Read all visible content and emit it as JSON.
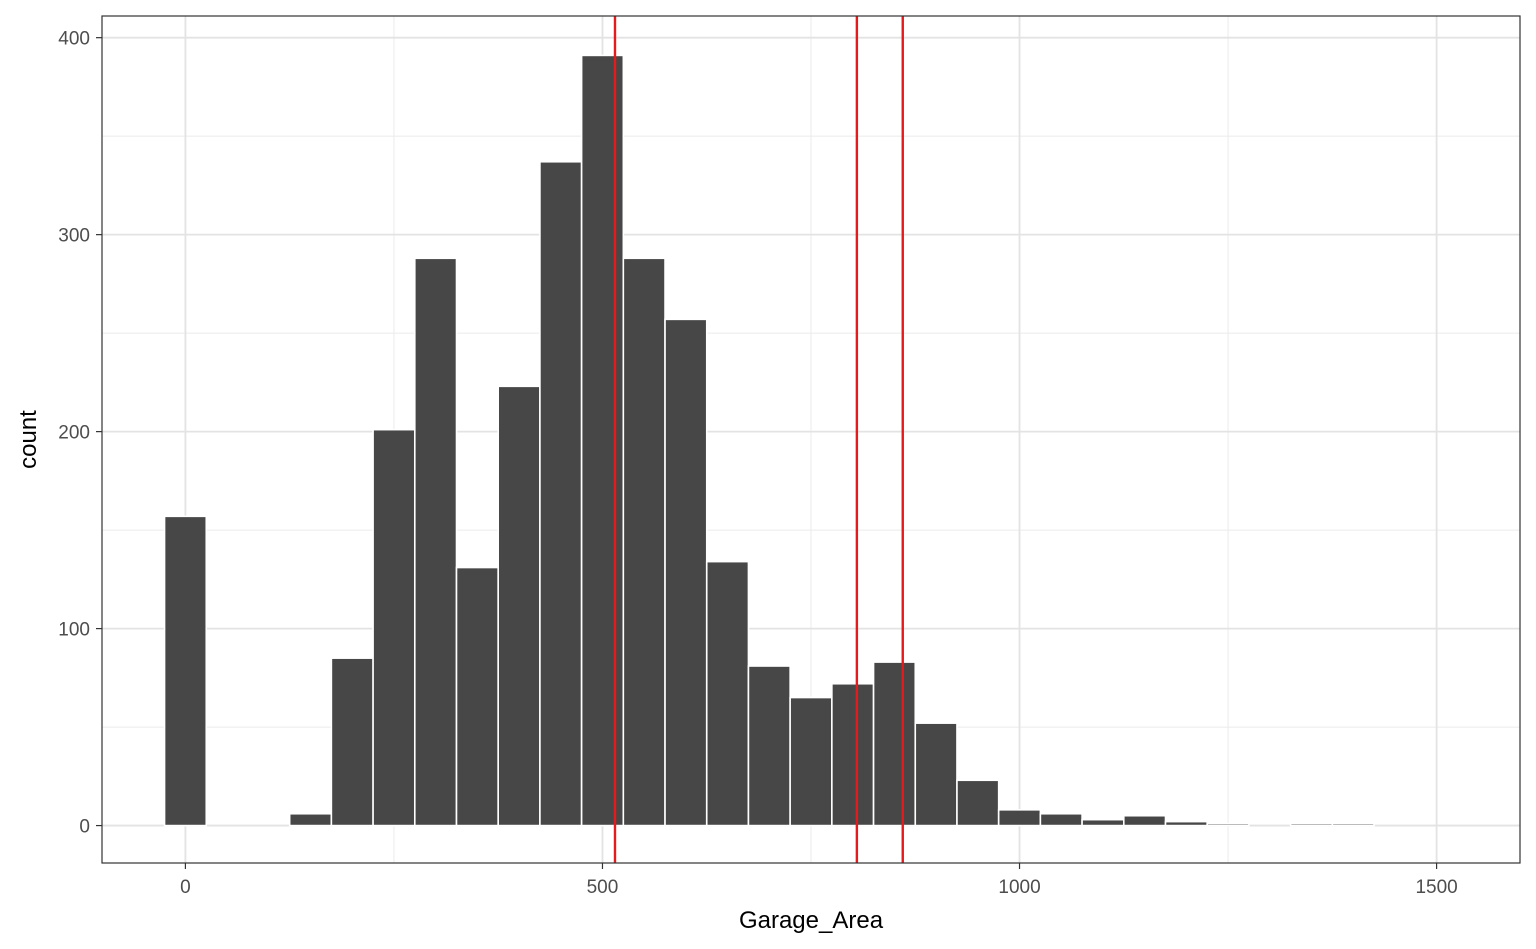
{
  "chart_data": {
    "type": "bar",
    "subtype": "histogram",
    "xlabel": "Garage_Area",
    "ylabel": "count",
    "x_ticks": [
      0,
      500,
      1000,
      1500
    ],
    "y_ticks": [
      0,
      100,
      200,
      300,
      400
    ],
    "xlim": [
      -100,
      1600
    ],
    "ylim": [
      -19,
      411
    ],
    "bin_width": 50,
    "bins": [
      {
        "center": 0,
        "count": 157
      },
      {
        "center": 50,
        "count": 0
      },
      {
        "center": 100,
        "count": 0
      },
      {
        "center": 150,
        "count": 6
      },
      {
        "center": 200,
        "count": 85
      },
      {
        "center": 250,
        "count": 201
      },
      {
        "center": 300,
        "count": 288
      },
      {
        "center": 350,
        "count": 131
      },
      {
        "center": 400,
        "count": 223
      },
      {
        "center": 450,
        "count": 337
      },
      {
        "center": 500,
        "count": 391
      },
      {
        "center": 550,
        "count": 288
      },
      {
        "center": 600,
        "count": 257
      },
      {
        "center": 650,
        "count": 134
      },
      {
        "center": 700,
        "count": 81
      },
      {
        "center": 750,
        "count": 65
      },
      {
        "center": 800,
        "count": 72
      },
      {
        "center": 850,
        "count": 83
      },
      {
        "center": 900,
        "count": 52
      },
      {
        "center": 950,
        "count": 23
      },
      {
        "center": 1000,
        "count": 8
      },
      {
        "center": 1050,
        "count": 6
      },
      {
        "center": 1100,
        "count": 3
      },
      {
        "center": 1150,
        "count": 5
      },
      {
        "center": 1200,
        "count": 2
      },
      {
        "center": 1250,
        "count": 1
      },
      {
        "center": 1300,
        "count": 0
      },
      {
        "center": 1350,
        "count": 1
      },
      {
        "center": 1400,
        "count": 1
      },
      {
        "center": 1450,
        "count": 0
      },
      {
        "center": 1500,
        "count": 0
      }
    ],
    "vlines": [
      {
        "x": 515,
        "color": "#e41a1c"
      },
      {
        "x": 805,
        "color": "#e41a1c"
      },
      {
        "x": 860,
        "color": "#e41a1c"
      }
    ],
    "bar_fill": "#474747",
    "bar_stroke": "#ffffff",
    "grid": true,
    "legend": "none"
  }
}
